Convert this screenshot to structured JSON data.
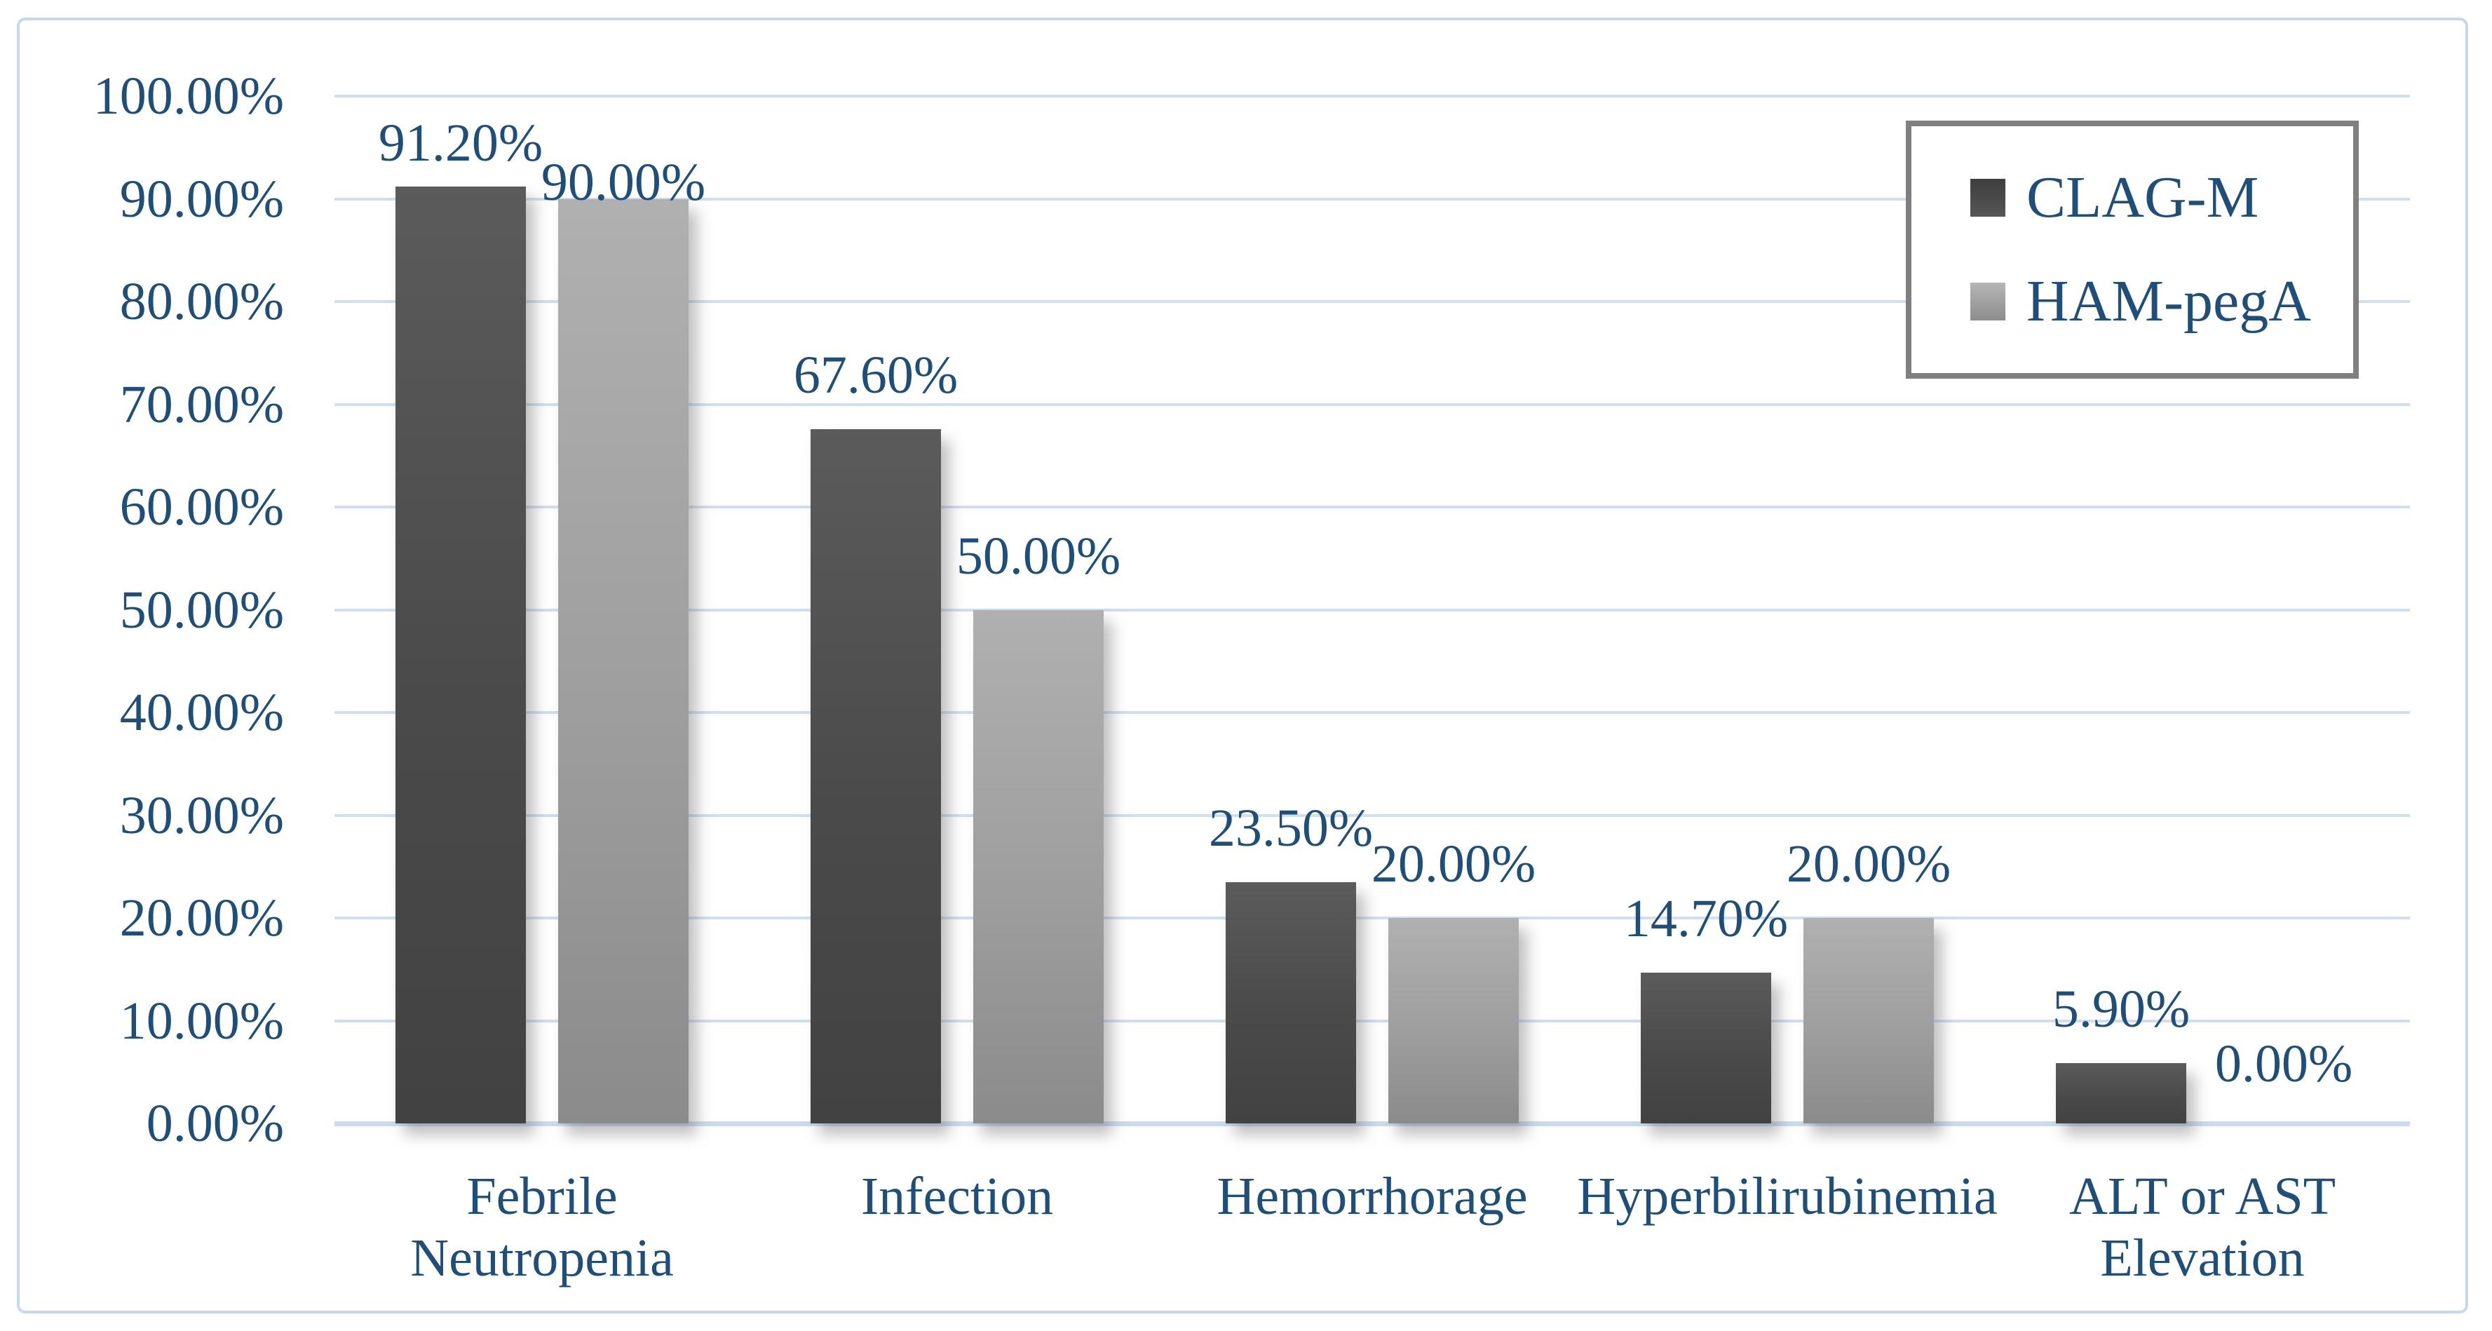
{
  "chart_data": {
    "type": "bar",
    "title": "",
    "xlabel": "",
    "ylabel": "",
    "categories": [
      "Febrile Neutropenia",
      "Infection",
      "Hemorrhorage",
      "Hyperbilirubinemia",
      "ALT or AST Elevation"
    ],
    "category_label_lines": [
      [
        "Febrile",
        "Neutropenia"
      ],
      [
        "Infection"
      ],
      [
        "Hemorrhorage"
      ],
      [
        "Hyperbilirubinemia"
      ],
      [
        "ALT or AST",
        "Elevation"
      ]
    ],
    "series": [
      {
        "name": "CLAG-M",
        "values": [
          91.2,
          67.6,
          23.5,
          14.7,
          5.9
        ],
        "value_labels": [
          "91.20%",
          "67.60%",
          "23.50%",
          "14.70%",
          "5.90%"
        ],
        "bar_color_top": "#5b5b5b",
        "bar_color_mid": "#4a4a4a",
        "bar_color_bottom": "#424242",
        "legend_swatch_top": "#3e3e3e",
        "legend_swatch_bottom": "#565656"
      },
      {
        "name": "HAM-pegA",
        "values": [
          90,
          50,
          20,
          20,
          0
        ],
        "value_labels": [
          "90.00%",
          "50.00%",
          "20.00%",
          "20.00%",
          "0.00%"
        ],
        "bar_color_top": "#b0b0b0",
        "bar_color_mid": "#9e9e9e",
        "bar_color_bottom": "#8b8b8b",
        "legend_swatch_top": "#b6b6b6",
        "legend_swatch_bottom": "#8c8c8c"
      }
    ],
    "yaxis": {
      "min": 0,
      "max": 100,
      "step": 10,
      "tick_labels": [
        "0.00%",
        "10.00%",
        "20.00%",
        "30.00%",
        "40.00%",
        "50.00%",
        "60.00%",
        "70.00%",
        "80.00%",
        "90.00%",
        "100.00%"
      ]
    },
    "grid": true,
    "legend_position": "top-right",
    "colors": {
      "text_navy": "#1f4e79",
      "gridline": "#cfdff1",
      "baseline": "#c9dcf0",
      "frame_border": "#c7d8ee",
      "legend_border": "#7f7f7f",
      "background": "#ffffff"
    }
  }
}
